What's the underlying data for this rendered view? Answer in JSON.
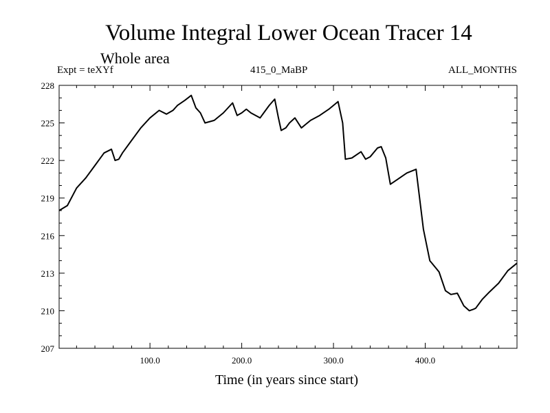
{
  "chart_data": {
    "type": "line",
    "title": "Volume Integral Lower Ocean Tracer 14",
    "subtitle": "Whole area",
    "annotations": {
      "left": "Expt = teXYf",
      "center": "415_0_MaBP",
      "right": "ALL_MONTHS"
    },
    "xlabel": "Time (in years since start)",
    "ylabel": "",
    "xlim": [
      1,
      500
    ],
    "ylim": [
      207,
      228
    ],
    "xticks": [
      100,
      200,
      300,
      400
    ],
    "xtick_labels": [
      "100.0",
      "200.0",
      "300.0",
      "400.0"
    ],
    "yticks": [
      207,
      210,
      213,
      216,
      219,
      222,
      225,
      228
    ],
    "ytick_labels": [
      "207",
      "210",
      "213",
      "216",
      "219",
      "222",
      "225",
      "228"
    ],
    "grid": false,
    "series": [
      {
        "color": "#000000",
        "x": [
          1,
          10,
          20,
          30,
          40,
          50,
          58,
          62,
          66,
          70,
          80,
          90,
          100,
          110,
          118,
          125,
          130,
          138,
          145,
          150,
          155,
          160,
          170,
          180,
          190,
          195,
          200,
          205,
          210,
          220,
          230,
          236,
          240,
          243,
          248,
          252,
          258,
          265,
          270,
          275,
          285,
          295,
          305,
          310,
          313,
          320,
          330,
          335,
          340,
          348,
          352,
          357,
          362,
          370,
          380,
          390,
          393,
          398,
          405,
          415,
          422,
          428,
          435,
          442,
          448,
          452,
          455,
          462,
          470,
          480,
          490,
          500
        ],
        "y": [
          218.0,
          218.4,
          219.8,
          220.6,
          221.6,
          222.6,
          222.9,
          222.0,
          222.1,
          222.6,
          223.6,
          224.6,
          225.4,
          226.0,
          225.7,
          226.0,
          226.4,
          226.8,
          227.2,
          226.2,
          225.8,
          225.0,
          225.2,
          225.8,
          226.6,
          225.6,
          225.8,
          226.1,
          225.8,
          225.4,
          226.4,
          226.9,
          225.4,
          224.4,
          224.6,
          225.0,
          225.4,
          224.6,
          224.9,
          225.2,
          225.6,
          226.1,
          226.7,
          225.0,
          222.1,
          222.2,
          222.7,
          222.1,
          222.3,
          223.0,
          223.1,
          222.2,
          220.1,
          220.5,
          221.0,
          221.3,
          219.5,
          216.5,
          214.0,
          213.1,
          211.6,
          211.3,
          211.4,
          210.4,
          210.0,
          210.1,
          210.2,
          210.9,
          211.5,
          212.2,
          213.2,
          213.8
        ]
      }
    ]
  }
}
